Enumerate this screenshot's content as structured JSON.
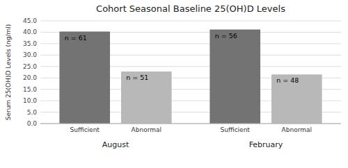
{
  "chart_data": {
    "type": "bar",
    "title": "Cohort Seasonal Baseline 25(OH)D Levels",
    "y_label": "Serum 25(OH)D Levels (ng/ml)",
    "categories": [
      "August",
      "February"
    ],
    "series": [
      {
        "name": "Sufficient",
        "color": "#737373",
        "values": [
          40.3,
          41.2
        ],
        "n_labels": [
          "n = 61",
          "n = 56"
        ]
      },
      {
        "name": "Abnormal",
        "color": "#b8b8b8",
        "values": [
          22.8,
          21.5
        ],
        "n_labels": [
          "n = 51",
          "n = 48"
        ]
      }
    ],
    "ylim": [
      0,
      45
    ],
    "yticks": [
      {
        "value": 0,
        "label": "0.0"
      },
      {
        "value": 5,
        "label": "5.0"
      },
      {
        "value": 10,
        "label": "10.0"
      },
      {
        "value": 15,
        "label": "15.0"
      },
      {
        "value": 20,
        "label": "20.0"
      },
      {
        "value": 25,
        "label": "25.0"
      },
      {
        "value": 30,
        "label": "30.0"
      },
      {
        "value": 35,
        "label": "35.0"
      },
      {
        "value": 40,
        "label": "40.0"
      },
      {
        "value": 45,
        "label": "45.0"
      }
    ],
    "grid": true
  }
}
